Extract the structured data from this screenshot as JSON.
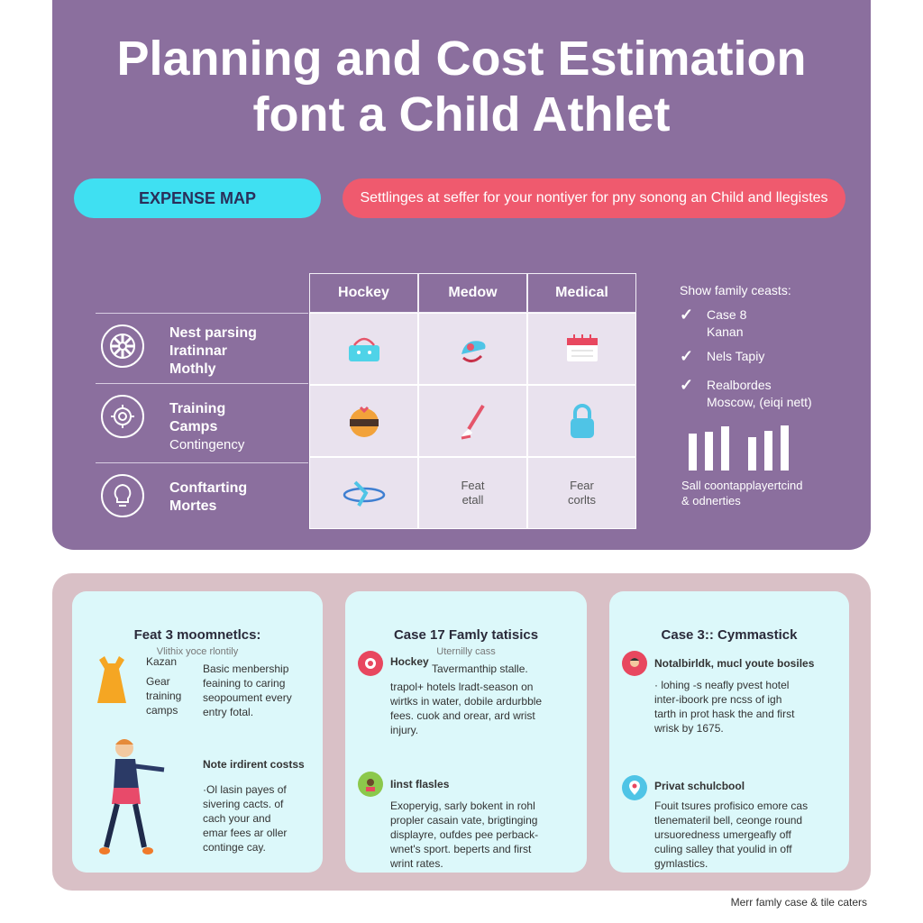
{
  "title": {
    "line1": "Planning and Cost Estimation",
    "line2": "font a Child Athlet"
  },
  "pills": {
    "expense": "EXPENSE MAP",
    "banner": "Settlinges at seffer for your nontiyer for pny sonong an Child and llegistes"
  },
  "grid": {
    "columns": [
      "Hockey",
      "Medow",
      "Medical"
    ],
    "rows": [
      {
        "icon": "wheel-icon",
        "line1": "Nest parsing",
        "line2": "Iratinnar",
        "line3": "Mothly"
      },
      {
        "icon": "gear-icon",
        "line1": "Training",
        "line2": "Camps",
        "line3": "Contingency"
      },
      {
        "icon": "lightbulb-icon",
        "line1": "Conftarting",
        "line2": "Mortes",
        "line3": ""
      }
    ],
    "cells": [
      {
        "icon": "basket-icon"
      },
      {
        "icon": "skate-icon"
      },
      {
        "icon": "calendar-icon"
      },
      {
        "icon": "ball-icon"
      },
      {
        "icon": "brush-icon"
      },
      {
        "icon": "lock-icon"
      },
      {
        "icon": "plane-icon"
      },
      {
        "line1": "Feat",
        "line2": "etall"
      },
      {
        "line1": "Fear",
        "line2": "corlts"
      }
    ]
  },
  "side": {
    "title": "Show family ceasts:",
    "checks": [
      {
        "line1": "Case 8",
        "line2": "Kanan"
      },
      {
        "line1": "Nels Tapiy",
        "line2": ""
      },
      {
        "line1": "Realbordes",
        "line2": "Moscow, (eiqi nett)"
      }
    ],
    "bars": [
      0.75,
      0.8,
      0.9,
      0.68,
      0.82,
      0.92
    ],
    "foot1": "Sall coontapplayertcind",
    "foot2": "& odnerties"
  },
  "cards": [
    {
      "title": "Feat 3 moomnetlcs:",
      "subtitle": "Vlithix yoce rlontily",
      "left_lines": [
        "Kazan",
        "Gear",
        "training",
        "camps"
      ],
      "block1": [
        "Basic menbership",
        "feaining to caring",
        "seopoument every",
        "entry fotal."
      ],
      "block2_title": "Note irdirent costss",
      "block2": [
        "·Ol lasin payes of",
        "sivering cacts. of",
        "cach your and",
        "emar fees ar oller",
        "continge cay."
      ]
    },
    {
      "title": "Case 17 Famly tatisics",
      "subtitle": "Uternilly cass",
      "item1_title": "Hockey",
      "item1": [
        "Tavermanthip stalle.",
        "trapol+ hotels lradt-season on",
        "wirtks in water, dobile ardurbble",
        "fees. cuok and orear, ard wrist",
        "injury."
      ],
      "item2_title": "Iinst flasles",
      "item2": [
        "Exoperyig, sarly bokent in rohl",
        "propler casain vate, brigtinging",
        "displayre, oufdes pee perback-",
        "wnet's sport. beperts and first",
        "wrint rates."
      ]
    },
    {
      "title": "Case 3:: Cymmastick",
      "subtitle": "",
      "item1_title": "Notalbirldk, mucl youte bosiles",
      "item1": [
        "· lohing -s neafly pvest hotel",
        "inter-iboork pre ncss of igh",
        "tarth in prot hask the and first",
        "wrisk by 1675."
      ],
      "item2_title": "Privat schulcbool",
      "item2": [
        "Fouit tsures profisico emore cas",
        "tlenemateril bell, ceonge round",
        "ursuoredness umergeafly off",
        "culing salley that youlid in off",
        "gymlastics."
      ]
    }
  ],
  "footer": "Merr famly case & tile caters",
  "colors": {
    "panel": "#8b6f9e",
    "accent_blue": "#3fe0f2",
    "accent_red": "#ef5a6e",
    "card": "#dcf8fa",
    "bottom_panel": "#d9c0c6"
  }
}
